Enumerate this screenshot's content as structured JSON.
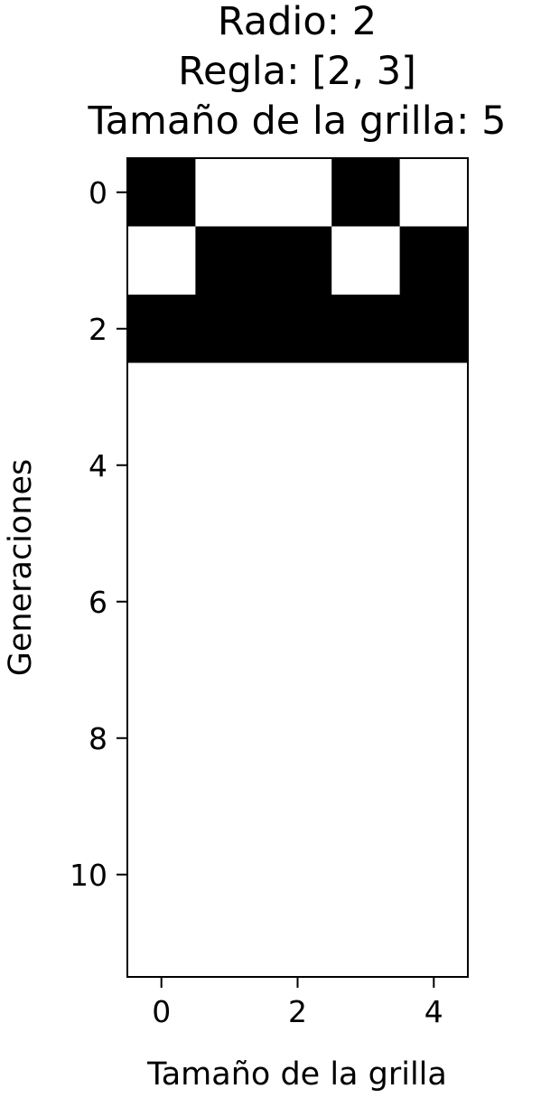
{
  "chart_data": {
    "type": "heatmap",
    "title_lines": [
      "Radio: 2",
      "Regla: [2, 3]",
      "Tamaño de la grilla: 5"
    ],
    "xlabel": "Tamaño de la grilla",
    "ylabel": "Generaciones",
    "xlim": [
      -0.5,
      4.5
    ],
    "ylim": [
      11.5,
      -0.5
    ],
    "x_ticks": [
      0,
      2,
      4
    ],
    "y_ticks": [
      0,
      2,
      4,
      6,
      8,
      10
    ],
    "colormap": {
      "0": "#ffffff",
      "1": "#000000"
    },
    "grid": false,
    "cells": [
      [
        1,
        0,
        0,
        1,
        0
      ],
      [
        0,
        1,
        1,
        0,
        1
      ],
      [
        1,
        1,
        1,
        1,
        1
      ],
      [
        0,
        0,
        0,
        0,
        0
      ],
      [
        0,
        0,
        0,
        0,
        0
      ],
      [
        0,
        0,
        0,
        0,
        0
      ],
      [
        0,
        0,
        0,
        0,
        0
      ],
      [
        0,
        0,
        0,
        0,
        0
      ],
      [
        0,
        0,
        0,
        0,
        0
      ],
      [
        0,
        0,
        0,
        0,
        0
      ],
      [
        0,
        0,
        0,
        0,
        0
      ],
      [
        0,
        0,
        0,
        0,
        0
      ]
    ]
  }
}
